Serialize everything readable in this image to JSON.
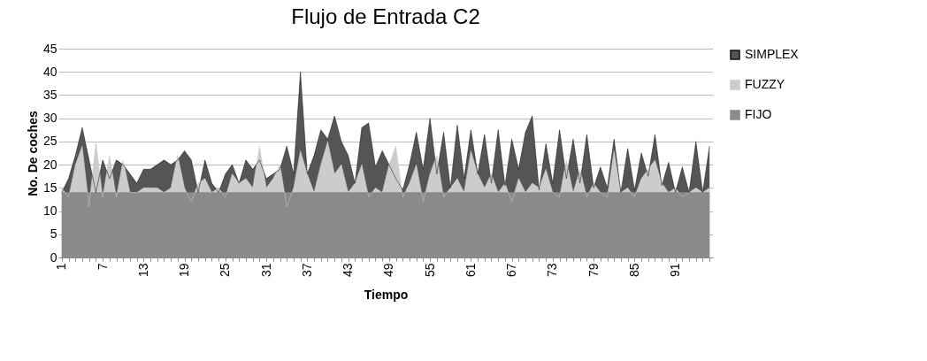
{
  "chart_data": {
    "type": "area",
    "title": "Flujo de Entrada C2",
    "xlabel": "Tiempo",
    "ylabel": "No. De coches",
    "categories": [
      "1",
      null,
      null,
      null,
      null,
      null,
      "7",
      null,
      null,
      null,
      null,
      null,
      "13",
      null,
      null,
      null,
      null,
      null,
      "19",
      null,
      null,
      null,
      null,
      null,
      "25",
      null,
      null,
      null,
      null,
      null,
      "31",
      null,
      null,
      null,
      null,
      null,
      "37",
      null,
      null,
      null,
      null,
      null,
      "43",
      null,
      null,
      null,
      null,
      null,
      "49",
      null,
      null,
      null,
      null,
      null,
      "55",
      null,
      null,
      null,
      null,
      null,
      "61",
      null,
      null,
      null,
      null,
      null,
      "67",
      null,
      null,
      null,
      null,
      null,
      "73",
      null,
      null,
      null,
      null,
      null,
      "79",
      null,
      null,
      null,
      null,
      null,
      "85",
      null,
      null,
      null,
      null,
      null,
      "91",
      null,
      null,
      null,
      null,
      null
    ],
    "ylim": [
      0,
      45
    ],
    "yticks": [
      0,
      5,
      10,
      15,
      20,
      25,
      30,
      35,
      40,
      45
    ],
    "grid": "y",
    "legend": "right",
    "series": [
      {
        "name": "SIMPLEX",
        "color": "#555555",
        "values": [
          14,
          17,
          22,
          28,
          21,
          14,
          21,
          17,
          21,
          20,
          18,
          16,
          19,
          19,
          20,
          21,
          20,
          21,
          23,
          21,
          14,
          21,
          16,
          14,
          18,
          20,
          16,
          21,
          19,
          21,
          17,
          18,
          19,
          24,
          18,
          40,
          18,
          22,
          27.5,
          25.5,
          30.5,
          25,
          22,
          16,
          28,
          29,
          19.5,
          23,
          20,
          17,
          14.5,
          20,
          27,
          19,
          30,
          18,
          27,
          15,
          28.5,
          17,
          27.5,
          18,
          26.5,
          16,
          27.5,
          15.5,
          25.5,
          19,
          27,
          30.5,
          14.5,
          24.5,
          16,
          27.5,
          17,
          25.5,
          16,
          26.5,
          15,
          19.5,
          15,
          25.5,
          14,
          23.5,
          14.5,
          22.5,
          17.5,
          26.5,
          15.5,
          20.5,
          14,
          19.5,
          14,
          25,
          14,
          24
        ]
      },
      {
        "name": "FUZZY",
        "color": "#cccccc",
        "values": [
          15,
          13,
          20,
          24,
          11,
          25,
          13,
          22,
          13,
          21,
          14,
          14,
          15,
          15,
          15,
          14,
          15,
          22,
          15,
          12,
          16,
          17,
          14,
          15,
          13,
          18,
          16,
          17,
          15,
          24,
          15,
          17,
          20,
          11,
          15,
          23,
          18,
          14,
          20,
          25,
          18,
          20,
          14,
          16,
          20,
          13,
          15,
          14,
          20,
          24,
          13,
          16,
          20,
          12,
          18,
          22,
          13,
          15,
          17,
          14,
          23,
          18,
          15,
          18,
          14,
          16,
          12,
          17,
          14,
          16,
          15,
          19,
          14,
          13,
          21,
          14,
          19,
          13,
          16,
          14,
          13,
          23,
          14,
          15,
          13,
          17,
          19,
          21,
          16,
          14,
          15,
          13,
          14,
          15,
          14,
          15
        ]
      },
      {
        "name": "FIJO",
        "color": "#8a8a8a",
        "values": [
          14,
          14,
          14,
          14,
          14,
          14,
          14,
          14,
          14,
          14,
          14,
          14,
          14,
          14,
          14,
          14,
          14,
          14,
          14,
          14,
          14,
          14,
          14,
          14,
          14,
          14,
          14,
          14,
          14,
          14,
          14,
          14,
          14,
          14,
          14,
          14,
          14,
          14,
          14,
          14,
          14,
          14,
          14,
          14,
          14,
          14,
          14,
          14,
          14,
          14,
          14,
          14,
          14,
          14,
          14,
          14,
          14,
          14,
          14,
          14,
          14,
          14,
          14,
          14,
          14,
          14,
          14,
          14,
          14,
          14,
          14,
          14,
          14,
          14,
          14,
          14,
          14,
          14,
          14,
          14,
          14,
          14,
          14,
          14,
          14,
          14,
          14,
          14,
          14,
          14,
          14,
          14,
          14,
          14,
          14,
          14
        ]
      }
    ]
  }
}
